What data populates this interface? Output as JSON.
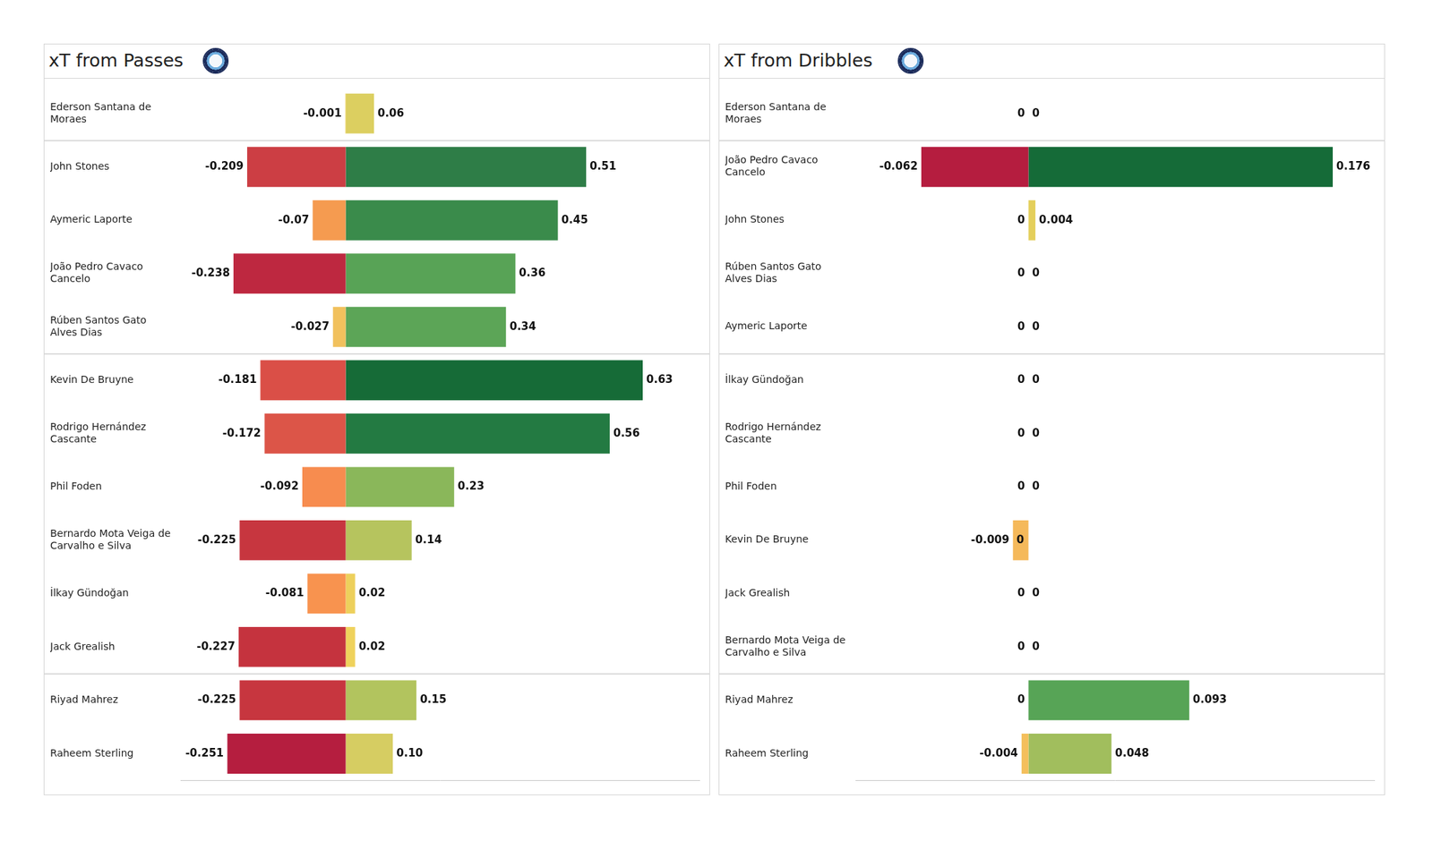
{
  "chart_data": [
    {
      "type": "bar",
      "title": "xT from Passes",
      "orientation": "horizontal",
      "stacked": true,
      "data_labels": true,
      "tick_labels": "y",
      "grid": false,
      "categories": [
        "Ederson Santana de Moraes",
        "John Stones",
        "Aymeric Laporte",
        "João Pedro Cavaco Cancelo",
        "Rúben Santos Gato Alves Dias",
        "Kevin De Bruyne",
        "Rodrigo Hernández Cascante",
        "Phil Foden",
        "Bernardo Mota Veiga de Carvalho e Silva",
        "İlkay Gündoğan",
        "Jack Grealish",
        "Riyad Mahrez",
        "Raheem Sterling"
      ],
      "xlim": [
        -0.35,
        0.75
      ],
      "series": [
        {
          "values": [
            -0.001,
            -0.209,
            -0.07,
            -0.238,
            -0.027,
            -0.181,
            -0.172,
            -0.092,
            -0.225,
            -0.081,
            -0.227,
            -0.225,
            -0.251
          ],
          "value_labels": [
            "-0.001",
            "-0.209",
            "-0.07",
            "-0.238",
            "-0.027",
            "-0.181",
            "-0.172",
            "-0.092",
            "-0.225",
            "-0.081",
            "-0.227",
            "-0.225",
            "-0.251"
          ],
          "colors": [
            "#f1d25e",
            "#cc3e44",
            "#f59b50",
            "#be2840",
            "#f1c15d",
            "#da4f47",
            "#dc5548",
            "#f78c4f",
            "#c7363f",
            "#f8934f",
            "#c5333e",
            "#c7363f",
            "#b51e3f"
          ]
        },
        {
          "values": [
            0.06,
            0.51,
            0.45,
            0.36,
            0.34,
            0.63,
            0.56,
            0.23,
            0.14,
            0.02,
            0.02,
            0.15,
            0.1
          ],
          "value_labels": [
            "0.06",
            "0.51",
            "0.45",
            "0.36",
            "0.34",
            "0.63",
            "0.56",
            "0.23",
            "0.14",
            "0.02",
            "0.02",
            "0.15",
            "0.10"
          ],
          "colors": [
            "#dccf60",
            "#2e7d47",
            "#3a8b4b",
            "#58a356",
            "#5ca557",
            "#166b37",
            "#237a42",
            "#8ab75a",
            "#b6c45e",
            "#edd05c",
            "#efd25c",
            "#b2c45e",
            "#d6cd62"
          ]
        }
      ]
    },
    {
      "type": "bar",
      "title": "xT from Dribbles",
      "orientation": "horizontal",
      "stacked": true,
      "data_labels": true,
      "tick_labels": "y",
      "grid": false,
      "categories": [
        "Ederson Santana de Moraes",
        "João Pedro Cavaco Cancelo",
        "John Stones",
        "Rúben Santos Gato Alves Dias",
        "Aymeric Laporte",
        "İlkay Gündoğan",
        "Rodrigo Hernández Cascante",
        "Phil Foden",
        "Kevin De Bruyne",
        "Jack Grealish",
        "Bernardo Mota Veiga de Carvalho e Silva",
        "Riyad Mahrez",
        "Raheem Sterling"
      ],
      "xlim": [
        -0.1,
        0.2
      ],
      "series": [
        {
          "values": [
            0,
            -0.062,
            0,
            0,
            0,
            0,
            0,
            0,
            -0.009,
            0,
            0,
            0,
            -0.004
          ],
          "value_labels": [
            "0",
            "-0.062",
            "0",
            "0",
            "0",
            "0",
            "0",
            "0",
            "-0.009",
            "0",
            "0",
            "0",
            "-0.004"
          ],
          "colors": [
            "#ecd25e",
            "#b51d3f",
            "#ecd25e",
            "#ecd25e",
            "#ecd25e",
            "#ecd25e",
            "#ecd25e",
            "#ecd25e",
            "#f5b95a",
            "#ecd25e",
            "#ecd25e",
            "#ecd25e",
            "#f4bf5c"
          ]
        },
        {
          "values": [
            0,
            0.176,
            0.004,
            0,
            0,
            0,
            0,
            0,
            0,
            0,
            0,
            0.093,
            0.048
          ],
          "value_labels": [
            "0",
            "0.176",
            "0.004",
            "0",
            "0",
            "0",
            "0",
            "0",
            "0",
            "0",
            "0",
            "0.093",
            "0.048"
          ],
          "colors": [
            "#ecd25e",
            "#156b38",
            "#e4cf5c",
            "#ecd25e",
            "#ecd25e",
            "#ecd25e",
            "#ecd25e",
            "#ecd25e",
            "#ecd25e",
            "#ecd25e",
            "#ecd25e",
            "#57a456",
            "#a1be5d"
          ]
        }
      ]
    }
  ]
}
